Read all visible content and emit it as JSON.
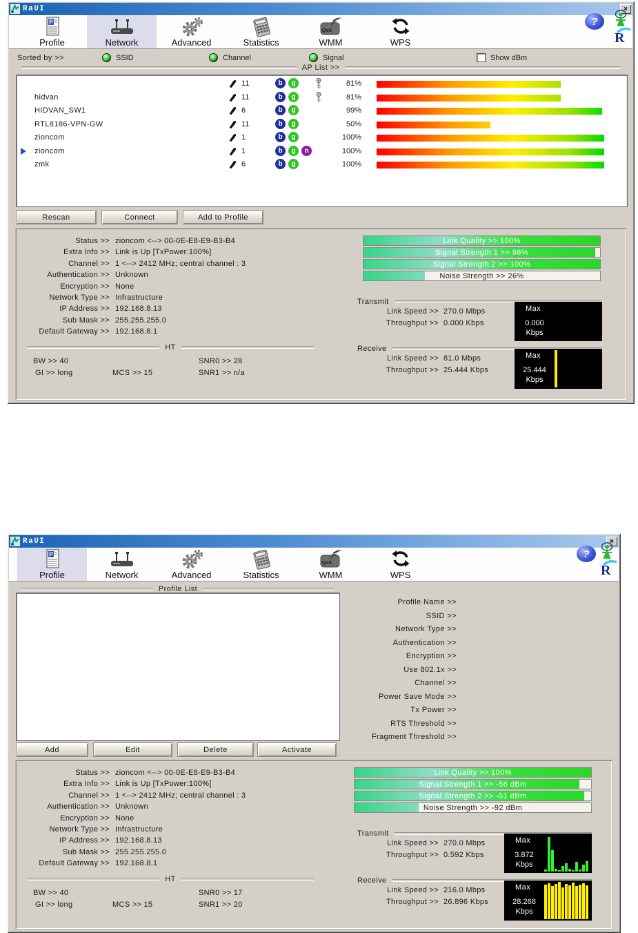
{
  "w1": {
    "title": "RaUI",
    "close_glyph": "×",
    "tabs": [
      "Profile",
      "Network",
      "Advanced",
      "Statistics",
      "WMM",
      "WPS"
    ],
    "active_tab": "Network",
    "help_glyph": "?",
    "logo_letter": "R",
    "sort": {
      "label": "Sorted by >>",
      "ssid": "SSID",
      "channel": "Channel",
      "signal": "Signal",
      "show_dbm": "Show dBm"
    },
    "ap_list_title": "AP List >>",
    "ap_rows": [
      {
        "ssid": "",
        "channel": "11",
        "b": "b",
        "g": "g",
        "n": "",
        "locked": true,
        "selected": false,
        "signal_label": "81%",
        "signal_pct": 81
      },
      {
        "ssid": "hidvan",
        "channel": "11",
        "b": "b",
        "g": "g",
        "n": "",
        "locked": true,
        "selected": false,
        "signal_label": "81%",
        "signal_pct": 81
      },
      {
        "ssid": "HIDVAN_SW1",
        "channel": "6",
        "b": "b",
        "g": "g",
        "n": "",
        "locked": false,
        "selected": false,
        "signal_label": "99%",
        "signal_pct": 99
      },
      {
        "ssid": "RTL8186-VPN-GW",
        "channel": "11",
        "b": "b",
        "g": "g",
        "n": "",
        "locked": false,
        "selected": false,
        "signal_label": "50%",
        "signal_pct": 50
      },
      {
        "ssid": "zioncom",
        "channel": "1",
        "b": "b",
        "g": "g",
        "n": "",
        "locked": false,
        "selected": false,
        "signal_label": "100%",
        "signal_pct": 100
      },
      {
        "ssid": "zioncom",
        "channel": "1",
        "b": "b",
        "g": "g",
        "n": "n",
        "locked": false,
        "selected": true,
        "signal_label": "100%",
        "signal_pct": 100
      },
      {
        "ssid": "zmk",
        "channel": "6",
        "b": "b",
        "g": "g",
        "n": "",
        "locked": false,
        "selected": false,
        "signal_label": "100%",
        "signal_pct": 100
      }
    ],
    "buttons": {
      "rescan": "Rescan",
      "connect": "Connect",
      "add_to_profile": "Add to Profile"
    },
    "status_rows": [
      {
        "label": "Status >>",
        "value": "zioncom <--> 00-0E-E8-E9-B3-B4"
      },
      {
        "label": "Extra Info >>",
        "value": "Link is Up [TxPower:100%]"
      },
      {
        "label": "Channel >>",
        "value": "1 <--> 2412 MHz; central channel : 3"
      },
      {
        "label": "Authentication >>",
        "value": "Unknown"
      },
      {
        "label": "Encryption >>",
        "value": "None"
      },
      {
        "label": "Network Type >>",
        "value": "Infrastructure"
      },
      {
        "label": "IP Address >>",
        "value": "192.168.8.13"
      },
      {
        "label": "Sub Mask >>",
        "value": "255.255.255.0"
      },
      {
        "label": "Default Gateway >>",
        "value": "192.168.8.1"
      }
    ],
    "quality": [
      {
        "label": "Link Quality >> 100%",
        "pct": 100
      },
      {
        "label": "Signal Strength 1 >> 98%",
        "pct": 98
      },
      {
        "label": "Signal Strength 2 >> 100%",
        "pct": 100
      },
      {
        "label": "Noise Strength >> 26%",
        "pct": 26
      }
    ],
    "transmit": {
      "title": "Transmit",
      "link_label": "Link Speed >>",
      "link_value": "270.0 Mbps",
      "tp_label": "Throughput >>",
      "tp_value": "0.000 Kbps",
      "max_label": "Max",
      "max_value": "0.000",
      "max_unit": "Kbps",
      "bars": []
    },
    "receive": {
      "title": "Receive",
      "link_label": "Link Speed >>",
      "link_value": "81.0 Mbps",
      "tp_label": "Throughput >>",
      "tp_value": "25.444 Kbps",
      "max_label": "Max",
      "max_value": "25.444",
      "max_unit": "Kbps",
      "bars": [
        100
      ]
    },
    "ht": {
      "title": "HT",
      "bw_label": "BW >>",
      "bw_value": "40",
      "gi_label": "GI >>",
      "gi_value": "long",
      "mcs_label": "MCS >>",
      "mcs_value": "15",
      "snr0_label": "SNR0 >>",
      "snr0_value": "28",
      "snr1_label": "SNR1 >>",
      "snr1_value": "n/a"
    }
  },
  "w2": {
    "title": "RaUI",
    "close_glyph": "×",
    "tabs": [
      "Profile",
      "Network",
      "Advanced",
      "Statistics",
      "WMM",
      "WPS"
    ],
    "active_tab": "Profile",
    "help_glyph": "?",
    "logo_letter": "R",
    "profile_list_title": "Profile List",
    "profile_fields": [
      "Profile Name >>",
      "SSID >>",
      "Network Type >>",
      "Authentication >>",
      "Encryption >>",
      "Use 802.1x >>",
      "Channel >>",
      "Power Save Mode >>",
      "Tx Power >>",
      "RTS Threshold >>",
      "Fragment Threshold >>"
    ],
    "buttons": {
      "add": "Add",
      "edit": "Edit",
      "delete": "Delete",
      "activate": "Activate"
    },
    "status_rows": [
      {
        "label": "Status >>",
        "value": "zioncom <--> 00-0E-E8-E9-B3-B4"
      },
      {
        "label": "Extra Info >>",
        "value": "Link is Up [TxPower:100%]"
      },
      {
        "label": "Channel >>",
        "value": "1 <--> 2412 MHz; central channel : 3"
      },
      {
        "label": "Authentication >>",
        "value": "Unknown"
      },
      {
        "label": "Encryption >>",
        "value": "None"
      },
      {
        "label": "Network Type >>",
        "value": "Infrastructure"
      },
      {
        "label": "IP Address >>",
        "value": "192.168.8.13"
      },
      {
        "label": "Sub Mask >>",
        "value": "255.255.255.0"
      },
      {
        "label": "Default Gateway >>",
        "value": "192.168.8.1"
      }
    ],
    "quality": [
      {
        "label": "Link Quality >> 100%",
        "pct": 100
      },
      {
        "label": "Signal Strength 1 >> -56 dBm",
        "pct": 95
      },
      {
        "label": "Signal Strength 2 >> -51 dBm",
        "pct": 97
      },
      {
        "label": "Noise Strength >> -92 dBm",
        "pct": 27
      }
    ],
    "transmit": {
      "title": "Transmit",
      "link_label": "Link Speed >>",
      "link_value": "270.0 Mbps",
      "tp_label": "Throughput >>",
      "tp_value": "0.592 Kbps",
      "max_label": "Max",
      "max_value": "3.872",
      "max_unit": "Kbps",
      "bars": [
        6,
        95,
        58,
        8,
        3,
        15,
        22,
        8,
        3,
        26,
        5,
        18,
        28
      ]
    },
    "receive": {
      "title": "Receive",
      "link_label": "Link Speed >>",
      "link_value": "216.0 Mbps",
      "tp_label": "Throughput >>",
      "tp_value": "26.896 Kbps",
      "max_label": "Max",
      "max_value": "28.268",
      "max_unit": "Kbps",
      "bars": [
        92,
        97,
        88,
        94,
        100,
        86,
        95,
        90,
        98,
        88,
        93,
        96,
        90
      ]
    },
    "ht": {
      "title": "HT",
      "bw_label": "BW >>",
      "bw_value": "40",
      "gi_label": "GI >>",
      "gi_value": "long",
      "mcs_label": "MCS >>",
      "mcs_value": "15",
      "snr0_label": "SNR0 >>",
      "snr0_value": "17",
      "snr1_label": "SNR1 >>",
      "snr1_value": "20"
    }
  }
}
